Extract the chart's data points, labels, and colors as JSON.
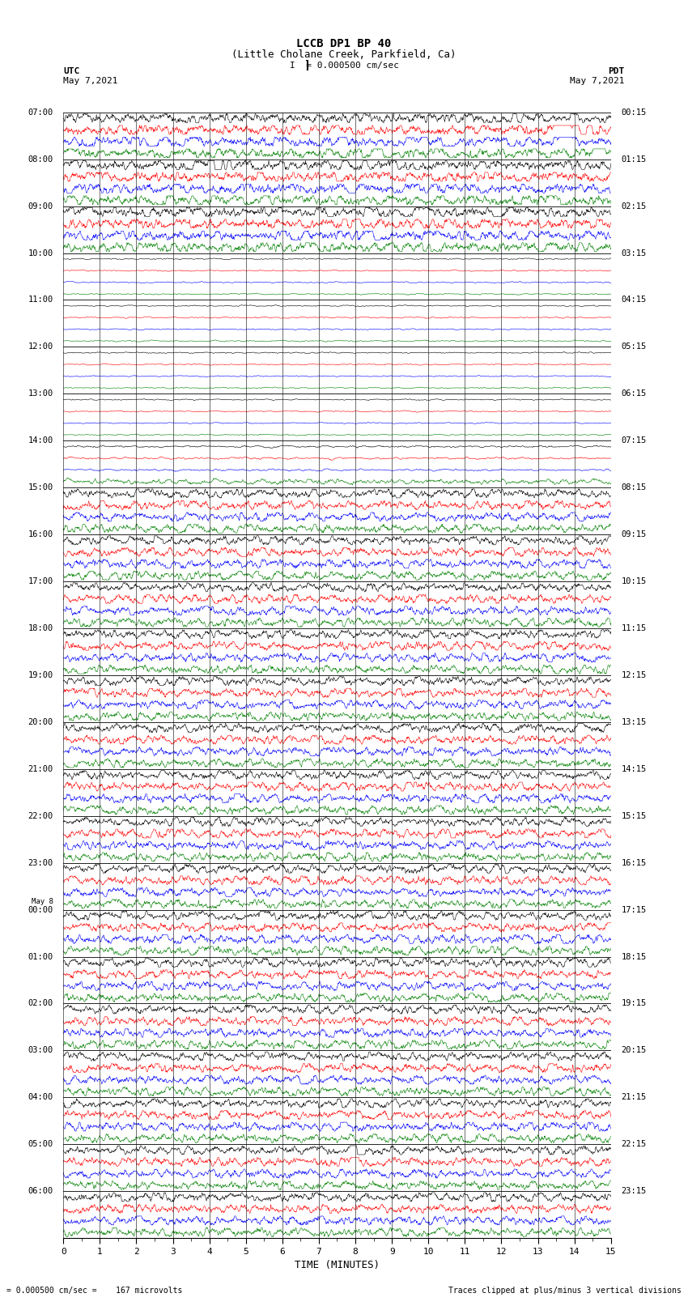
{
  "title_line1": "LCCB DP1 BP 40",
  "title_line2": "(Little Cholane Creek, Parkfield, Ca)",
  "scale_label": "I  = 0.000500 cm/sec",
  "footer_left": "= 0.000500 cm/sec =    167 microvolts",
  "footer_right": "Traces clipped at plus/minus 3 vertical divisions",
  "label_utc": "UTC",
  "label_pdt": "PDT",
  "date_left": "May 7,2021",
  "date_right": "May 7,2021",
  "xlabel": "TIME (MINUTES)",
  "left_times": [
    "07:00",
    "08:00",
    "09:00",
    "10:00",
    "11:00",
    "12:00",
    "13:00",
    "14:00",
    "15:00",
    "16:00",
    "17:00",
    "18:00",
    "19:00",
    "20:00",
    "21:00",
    "22:00",
    "23:00",
    "May 8\n00:00",
    "01:00",
    "02:00",
    "03:00",
    "04:00",
    "05:00",
    "06:00"
  ],
  "right_times": [
    "00:15",
    "01:15",
    "02:15",
    "03:15",
    "04:15",
    "05:15",
    "06:15",
    "07:15",
    "08:15",
    "09:15",
    "10:15",
    "11:15",
    "12:15",
    "13:15",
    "14:15",
    "15:15",
    "16:15",
    "17:15",
    "18:15",
    "19:15",
    "20:15",
    "21:15",
    "22:15",
    "23:15"
  ],
  "n_rows": 24,
  "n_traces_per_row": 4,
  "trace_colors": [
    "black",
    "red",
    "blue",
    "green"
  ],
  "background_color": "#ffffff",
  "n_samples": 1800,
  "quiet_rows": [
    3,
    4,
    5,
    6
  ],
  "fig_width": 8.5,
  "fig_height": 16.13,
  "dpi": 100
}
